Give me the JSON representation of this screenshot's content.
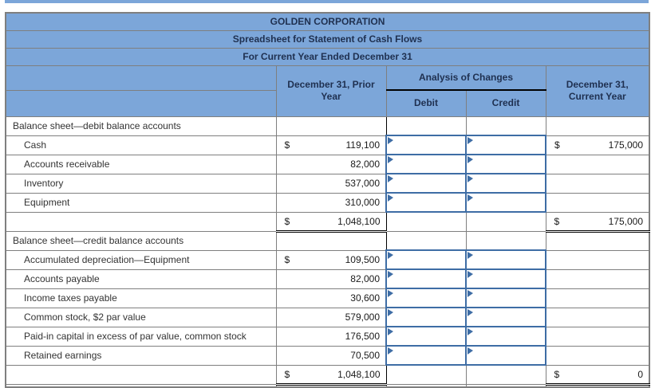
{
  "titles": [
    "GOLDEN CORPORATION",
    "Spreadsheet for Statement of Cash Flows",
    "For Current Year Ended December 31"
  ],
  "column_headers": {
    "prior": "December 31, Prior\nYear",
    "analysis": "Analysis of Changes",
    "debit": "Debit",
    "credit": "Credit",
    "current": "December 31,\nCurrent Year"
  },
  "colors": {
    "header_bg": "#7CA6D9",
    "grid": "#7F7F7F",
    "box_border": "#3E6DA5",
    "header_text": "#1F3050",
    "total_border": "#000000"
  },
  "icons": {
    "input_flag": "comment-flag-triangle"
  },
  "rows": [
    {
      "type": "section",
      "label": "Balance sheet—debit balance accounts"
    },
    {
      "type": "data",
      "label": "Cash",
      "prior_dollar": "$",
      "prior": "119,100",
      "current_dollar": "$",
      "current": "175,000"
    },
    {
      "type": "data",
      "label": "Accounts receivable",
      "prior": "82,000"
    },
    {
      "type": "data",
      "label": "Inventory",
      "prior": "537,000"
    },
    {
      "type": "data",
      "label": "Equipment",
      "prior": "310,000"
    },
    {
      "type": "total",
      "prior_dollar": "$",
      "prior": "1,048,100",
      "current_dollar": "$",
      "current": "175,000"
    },
    {
      "type": "section",
      "label": "Balance sheet—credit balance accounts"
    },
    {
      "type": "data",
      "label": "Accumulated depreciation—Equipment",
      "prior_dollar": "$",
      "prior": "109,500"
    },
    {
      "type": "data",
      "label": "Accounts payable",
      "prior": "82,000"
    },
    {
      "type": "data",
      "label": "Income taxes payable",
      "prior": "30,600"
    },
    {
      "type": "data",
      "label": "Common stock, $2 par value",
      "prior": "579,000"
    },
    {
      "type": "data",
      "label": "Paid-in capital in excess of par value, common stock",
      "prior": "176,500"
    },
    {
      "type": "data",
      "label": "Retained earnings",
      "prior": "70,500"
    },
    {
      "type": "total",
      "prior_dollar": "$",
      "prior": "1,048,100",
      "current_dollar": "$",
      "current": "0"
    }
  ]
}
